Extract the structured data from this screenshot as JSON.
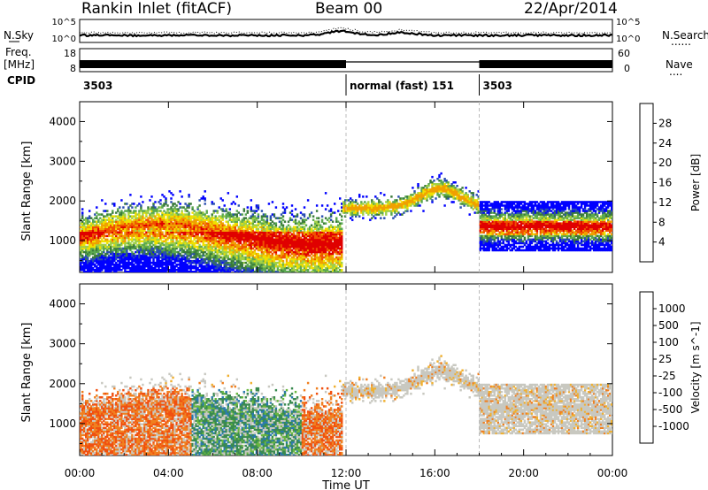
{
  "header": {
    "station": "Rankin Inlet (fitACF)",
    "beam": "Beam 00",
    "date": "22/Apr/2014"
  },
  "noise_panel": {
    "left_label": "N.Sky",
    "right_label": "N.Search",
    "right_legend": "......",
    "ticks_left": [
      "10^5",
      "10^0"
    ],
    "ticks_right": [
      "10^5",
      "10^0"
    ]
  },
  "freq_panel": {
    "left_label_line1": "Freq.",
    "left_label_line2": "[MHz]",
    "right_label": "Nave",
    "right_legend": "....",
    "ticks_left": [
      "18",
      "8"
    ],
    "ticks_right": [
      "60",
      "0"
    ]
  },
  "cpid": {
    "label": "CPID",
    "segments": [
      {
        "start": 0,
        "end": 12,
        "text": "3503"
      },
      {
        "start": 12,
        "end": 18,
        "text": "normal (fast) 151"
      },
      {
        "start": 18,
        "end": 24,
        "text": "3503"
      }
    ]
  },
  "chart_data": [
    {
      "type": "heatmap",
      "title": "",
      "quantity": "Power",
      "ylabel": "Slant Range [km]",
      "ylim": [
        200,
        4500
      ],
      "xlim_hours": [
        0,
        24
      ],
      "yticks": [
        1000,
        2000,
        3000,
        4000
      ],
      "colorbar": {
        "label": "Power [dB]",
        "ticks": [
          "28",
          "24",
          "20",
          "16",
          "12",
          "8",
          "4"
        ],
        "colors": [
          "#0000ff",
          "#2a4fb0",
          "#3a7a3a",
          "#5aa850",
          "#a0d048",
          "#f0e000",
          "#f0a000",
          "#f05000",
          "#e00000"
        ]
      }
    },
    {
      "type": "heatmap",
      "title": "",
      "quantity": "Velocity",
      "ylabel": "Slant Range [km]",
      "ylim": [
        200,
        4500
      ],
      "xlim_hours": [
        0,
        24
      ],
      "yticks": [
        1000,
        2000,
        3000,
        4000
      ],
      "xticks": [
        "00:00",
        "04:00",
        "08:00",
        "12:00",
        "16:00",
        "20:00",
        "00:00"
      ],
      "xlabel": "Time UT",
      "colorbar": {
        "label": "Velocity [m s^-1]",
        "ticks": [
          "1000",
          "500",
          "100",
          "25",
          "-25",
          "-100",
          "-500",
          "-1000"
        ],
        "colors": [
          "#1f3fb0",
          "#2a7ab0",
          "#3a8a50",
          "#6ab840",
          "#a8d880",
          "#c8c8c0",
          "#f0b030",
          "#f08020",
          "#f05010",
          "#e00000"
        ]
      }
    }
  ]
}
